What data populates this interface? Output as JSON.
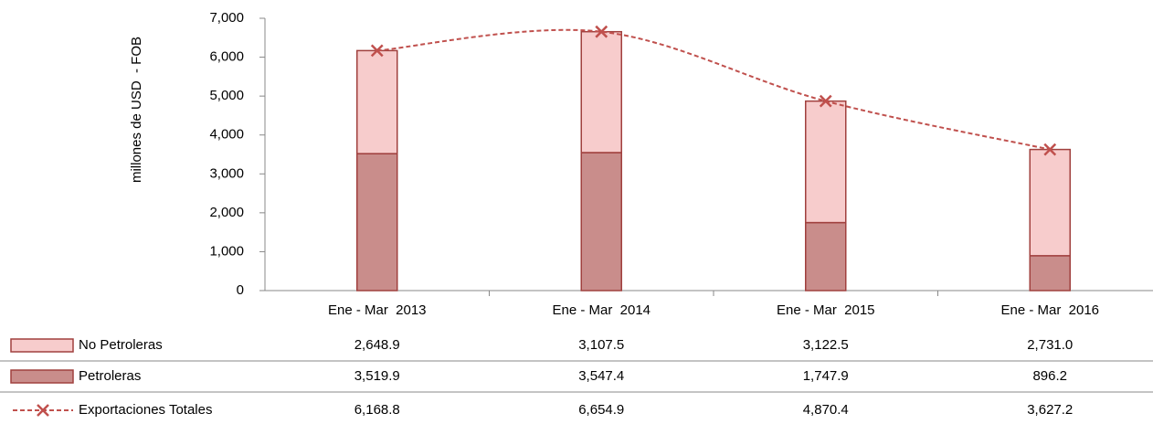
{
  "chart_data": {
    "type": "bar",
    "y_label": "millones de USD  - FOB",
    "categories": [
      "Ene - Mar  2013",
      "Ene - Mar  2014",
      "Ene - Mar  2015",
      "Ene - Mar  2016"
    ],
    "series": [
      {
        "name": "No Petroleras",
        "color": "#f7cccc",
        "stack": true,
        "values": [
          2648.9,
          3107.5,
          3122.5,
          2731.0
        ],
        "value_labels": [
          "2,648.9",
          "3,107.5",
          "3,122.5",
          "2,731.0"
        ]
      },
      {
        "name": "Petroleras",
        "color": "#c98d8b",
        "stack": true,
        "values": [
          3519.9,
          3547.4,
          1747.9,
          896.2
        ],
        "value_labels": [
          "3,519.9",
          "3,547.4",
          "1,747.9",
          "896.2"
        ]
      },
      {
        "name": "Exportaciones Totales",
        "color": "#c0504d",
        "line": true,
        "values": [
          6168.8,
          6654.9,
          4870.4,
          3627.2
        ],
        "value_labels": [
          "6,168.8",
          "6,654.9",
          "4,870.4",
          "3,627.2"
        ]
      }
    ],
    "ylim": [
      0,
      7000
    ],
    "yticks": [
      0,
      {
        "value": 1000,
        "label": "1,000"
      },
      {
        "value": 2000,
        "label": "2,000"
      },
      {
        "value": 3000,
        "label": "3,000"
      },
      {
        "value": 4000,
        "label": "4,000"
      },
      {
        "value": 5000,
        "label": "5,000"
      },
      {
        "value": 6000,
        "label": "6,000"
      },
      {
        "value": 7000,
        "label": "7,000"
      }
    ],
    "legend": "table"
  }
}
